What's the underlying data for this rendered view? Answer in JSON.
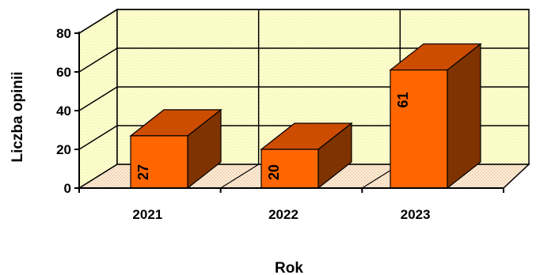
{
  "chart_data": {
    "type": "bar",
    "title": "",
    "xlabel": "Rok",
    "ylabel": "Liczba opinii",
    "categories": [
      "2021",
      "2022",
      "2023"
    ],
    "values": [
      27,
      20,
      61
    ],
    "ylim": [
      0,
      80
    ],
    "yticks": [
      0,
      20,
      40,
      60,
      80
    ],
    "grid": true,
    "three_d": true,
    "colors": {
      "bar_front": "#FF6600",
      "bar_top": "#CC4C00",
      "bar_side": "#7F3300",
      "wall": "#FFFFCC",
      "floor": "#F2DCC0"
    }
  }
}
